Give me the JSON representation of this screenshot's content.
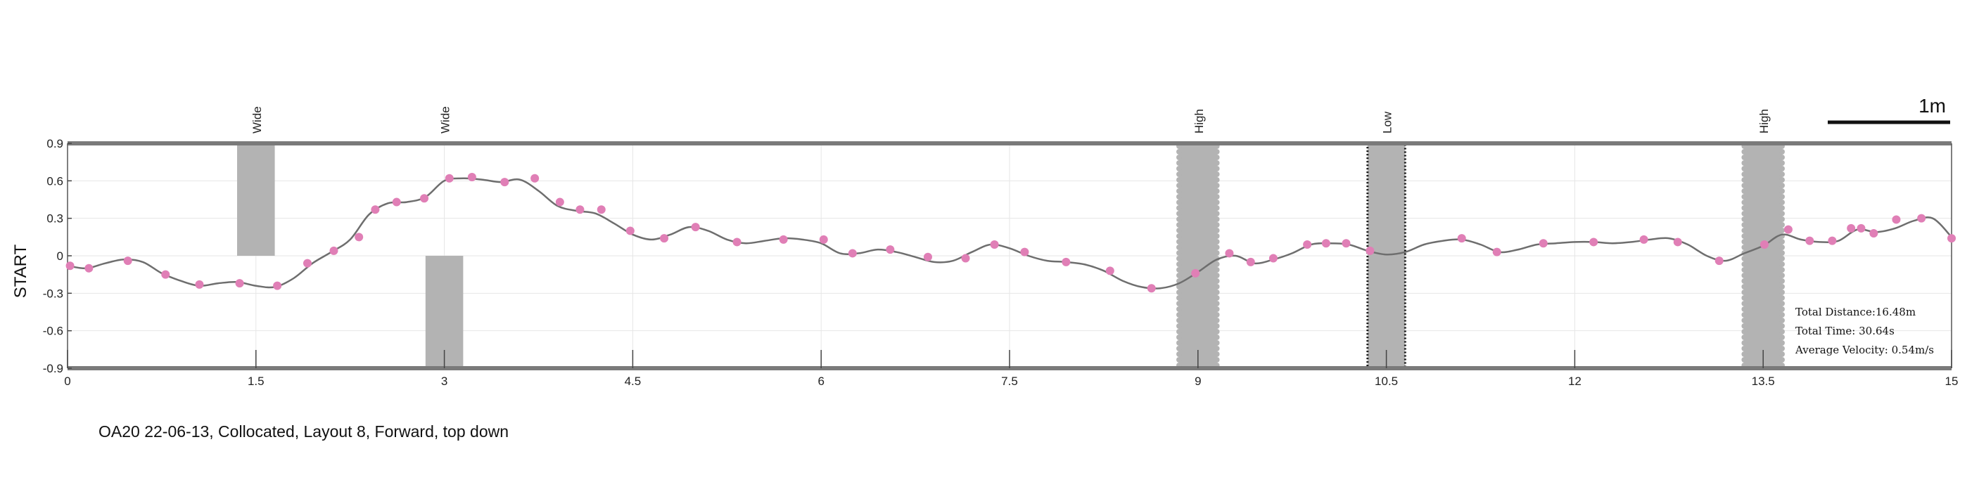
{
  "caption": "OA20 22-06-13, Collocated, Layout 8, Forward, top down",
  "scale_bar": {
    "label": "1m"
  },
  "stats": {
    "distance": "Total Distance:16.48m",
    "time": "Total Time: 30.64s",
    "velocity": "Average Velocity: 0.54m/s"
  },
  "colors": {
    "path": "#6e6e6e",
    "marker": "#e07fb6",
    "obstacle": "#b3b3b3",
    "border": "#7a7a7a",
    "grid": "#e6e6e6"
  },
  "chart_data": {
    "type": "line",
    "title": "",
    "xlabel": "",
    "ylabel": "START",
    "xlim": [
      0,
      15
    ],
    "ylim": [
      -0.9,
      0.9
    ],
    "x_ticks": [
      "0",
      "1.5",
      "3",
      "4.5",
      "6",
      "7.5",
      "9",
      "10.5",
      "12",
      "13.5",
      "15"
    ],
    "y_ticks": [
      "0.9",
      "0.6",
      "0.3",
      "0",
      "-0.3",
      "-0.6",
      "-0.9"
    ],
    "grid": true,
    "obstacles": [
      {
        "label": "Wide",
        "x_center": 1.5,
        "width": 0.3,
        "y_from": 0,
        "y_to": 0.9,
        "style": "solid"
      },
      {
        "label": "Wide",
        "x_center": 3.0,
        "width": 0.3,
        "y_from": -0.9,
        "y_to": 0,
        "style": "solid"
      },
      {
        "label": "High",
        "x_center": 9.0,
        "width": 0.3,
        "y_from": -0.9,
        "y_to": 0.9,
        "style": "scalloped"
      },
      {
        "label": "Low",
        "x_center": 10.5,
        "width": 0.3,
        "y_from": -0.9,
        "y_to": 0.9,
        "style": "dotted"
      },
      {
        "label": "High",
        "x_center": 13.5,
        "width": 0.3,
        "y_from": -0.9,
        "y_to": 0.9,
        "style": "scalloped"
      }
    ],
    "series": [
      {
        "x": [
          0.0,
          0.15,
          0.3,
          0.45,
          0.6,
          0.75,
          0.9,
          1.05,
          1.2,
          1.35,
          1.5,
          1.65,
          1.8,
          1.95,
          2.1,
          2.25,
          2.4,
          2.55,
          2.7,
          2.85,
          3.0,
          3.15,
          3.3,
          3.45,
          3.6,
          3.75,
          3.9,
          4.05,
          4.2,
          4.35,
          4.5,
          4.65,
          4.8,
          4.95,
          5.1,
          5.25,
          5.4,
          5.55,
          5.7,
          5.85,
          6.0,
          6.15,
          6.3,
          6.45,
          6.6,
          6.75,
          6.9,
          7.05,
          7.2,
          7.35,
          7.5,
          7.65,
          7.8,
          7.95,
          8.1,
          8.25,
          8.4,
          8.55,
          8.7,
          8.85,
          9.0,
          9.15,
          9.3,
          9.45,
          9.6,
          9.75,
          9.9,
          10.05,
          10.2,
          10.35,
          10.5,
          10.65,
          10.8,
          10.95,
          11.1,
          11.25,
          11.4,
          11.55,
          11.7,
          11.85,
          12.0,
          12.15,
          12.3,
          12.45,
          12.6,
          12.75,
          12.9,
          13.05,
          13.2,
          13.35,
          13.5,
          13.65,
          13.8,
          13.95,
          14.1,
          14.25,
          14.4,
          14.55,
          14.7,
          14.85,
          15.0
        ],
        "y": [
          -0.08,
          -0.1,
          -0.06,
          -0.03,
          -0.05,
          -0.14,
          -0.2,
          -0.24,
          -0.22,
          -0.21,
          -0.24,
          -0.25,
          -0.18,
          -0.06,
          0.03,
          0.13,
          0.33,
          0.42,
          0.43,
          0.47,
          0.6,
          0.62,
          0.61,
          0.59,
          0.61,
          0.52,
          0.4,
          0.36,
          0.34,
          0.26,
          0.17,
          0.13,
          0.17,
          0.23,
          0.2,
          0.13,
          0.1,
          0.12,
          0.14,
          0.13,
          0.1,
          0.02,
          0.02,
          0.05,
          0.03,
          -0.01,
          -0.05,
          -0.04,
          0.03,
          0.09,
          0.06,
          0.0,
          -0.04,
          -0.05,
          -0.07,
          -0.12,
          -0.2,
          -0.25,
          -0.26,
          -0.22,
          -0.13,
          -0.03,
          0.0,
          -0.06,
          -0.03,
          0.02,
          0.09,
          0.1,
          0.09,
          0.04,
          0.01,
          0.03,
          0.09,
          0.12,
          0.13,
          0.09,
          0.03,
          0.05,
          0.09,
          0.1,
          0.11,
          0.11,
          0.1,
          0.11,
          0.13,
          0.14,
          0.09,
          0.0,
          -0.04,
          0.02,
          0.08,
          0.17,
          0.13,
          0.11,
          0.12,
          0.21,
          0.19,
          0.22,
          0.28,
          0.3,
          0.15
        ],
        "markers_x": [
          0.02,
          0.17,
          0.48,
          0.78,
          1.05,
          1.37,
          1.67,
          1.91,
          2.12,
          2.32,
          2.45,
          2.62,
          2.84,
          3.04,
          3.22,
          3.48,
          3.72,
          3.92,
          4.08,
          4.25,
          4.48,
          4.75,
          5.0,
          5.33,
          5.7,
          6.02,
          6.25,
          6.55,
          6.85,
          7.15,
          7.38,
          7.62,
          7.95,
          8.3,
          8.63,
          8.98,
          9.25,
          9.42,
          9.6,
          9.87,
          10.02,
          10.18,
          10.37,
          11.1,
          11.38,
          11.75,
          12.15,
          12.55,
          12.82,
          13.15,
          13.51,
          13.7,
          13.87,
          14.05,
          14.2,
          14.28,
          14.38,
          14.56,
          14.76,
          15.0
        ],
        "markers_y": [
          -0.08,
          -0.1,
          -0.04,
          -0.15,
          -0.23,
          -0.22,
          -0.24,
          -0.06,
          0.04,
          0.15,
          0.37,
          0.43,
          0.46,
          0.62,
          0.63,
          0.59,
          0.62,
          0.43,
          0.37,
          0.37,
          0.2,
          0.14,
          0.23,
          0.11,
          0.13,
          0.13,
          0.02,
          0.05,
          -0.01,
          -0.02,
          0.09,
          0.03,
          -0.05,
          -0.12,
          -0.26,
          -0.14,
          0.02,
          -0.05,
          -0.02,
          0.09,
          0.1,
          0.1,
          0.04,
          0.14,
          0.03,
          0.1,
          0.11,
          0.13,
          0.11,
          -0.04,
          0.09,
          0.21,
          0.12,
          0.12,
          0.22,
          0.22,
          0.18,
          0.29,
          0.3,
          0.14
        ]
      }
    ]
  }
}
